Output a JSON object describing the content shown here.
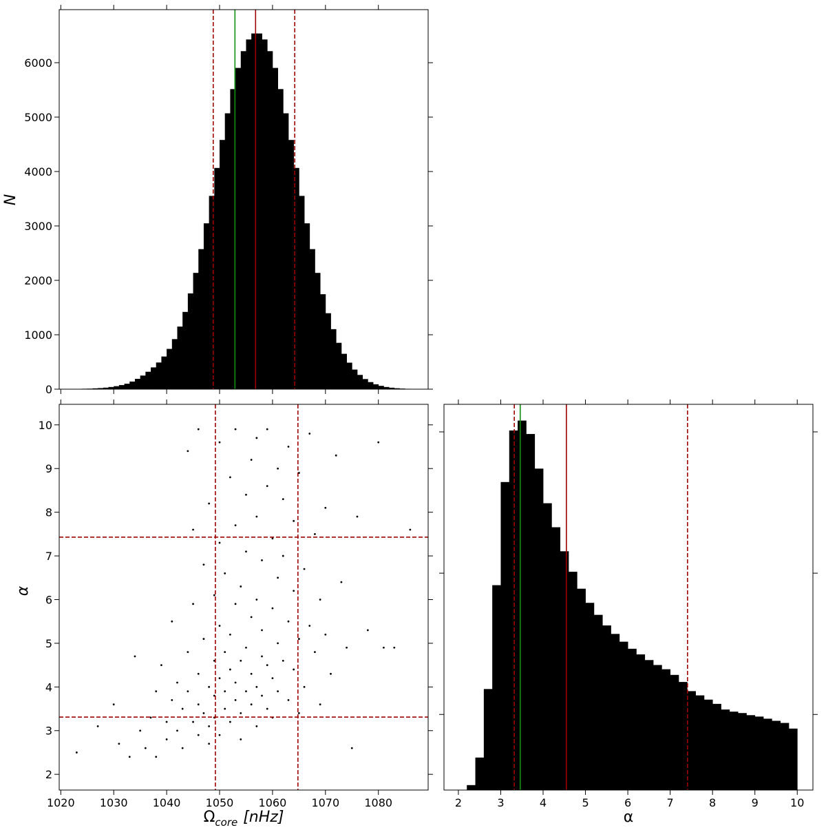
{
  "chart_data": [
    {
      "type": "histogram",
      "color": "#000000",
      "bins": [
        1023,
        1024,
        1025,
        1026,
        1027,
        1028,
        1029,
        1030,
        1031,
        1032,
        1033,
        1034,
        1035,
        1036,
        1037,
        1038,
        1039,
        1040,
        1041,
        1042,
        1043,
        1044,
        1045,
        1046,
        1047,
        1048,
        1049,
        1050,
        1051,
        1052,
        1053,
        1054,
        1055,
        1056,
        1057,
        1058,
        1059,
        1060,
        1061,
        1062,
        1063,
        1064,
        1065,
        1066,
        1067,
        1068,
        1069,
        1070,
        1071,
        1072,
        1073,
        1074,
        1075,
        1076,
        1077,
        1078,
        1079,
        1080,
        1081,
        1082,
        1083,
        1084,
        1085,
        1086
      ],
      "counts": [
        5,
        8,
        10,
        15,
        20,
        28,
        40,
        55,
        75,
        100,
        140,
        190,
        250,
        320,
        400,
        490,
        600,
        740,
        920,
        1150,
        1420,
        1760,
        2137,
        2574,
        3048,
        3552,
        4066,
        4580,
        5070,
        5515,
        5904,
        6212,
        6427,
        6537,
        6537,
        6427,
        6212,
        5904,
        5515,
        5070,
        4580,
        4066,
        3552,
        3048,
        2574,
        2137,
        1745,
        1396,
        1103,
        852,
        650,
        487,
        360,
        262,
        186,
        130,
        90,
        61,
        40,
        27,
        17,
        11,
        7
      ],
      "xlim": [
        1019.7,
        1089.4
      ],
      "xticks": [
        1020,
        1030,
        1040,
        1050,
        1060,
        1070,
        1080
      ],
      "show_xtick_labels": false,
      "ylim": [
        0,
        6975
      ],
      "yticks": [
        0,
        1000,
        2000,
        3000,
        4000,
        5000,
        6000
      ],
      "show_ytick_labels": true,
      "y_label": "N",
      "vlines": [
        {
          "x": 1048.8,
          "color": "#a00000",
          "style": "dashed"
        },
        {
          "x": 1064.2,
          "color": "#a00000",
          "style": "dashed"
        },
        {
          "x": 1056.8,
          "color": "#a00000",
          "style": "solid"
        },
        {
          "x": 1052.9,
          "color": "#109010",
          "style": "solid"
        }
      ]
    },
    {
      "type": "scatter",
      "color": "#000000",
      "x": [
        1023,
        1027,
        1030,
        1031,
        1033,
        1034,
        1035,
        1036,
        1037,
        1038,
        1038,
        1039,
        1040,
        1040,
        1041,
        1041,
        1042,
        1042,
        1043,
        1043,
        1044,
        1044,
        1044,
        1045,
        1045,
        1045,
        1046,
        1046,
        1046,
        1046,
        1047,
        1047,
        1047,
        1048,
        1048,
        1048,
        1048,
        1049,
        1049,
        1049,
        1049,
        1050,
        1050,
        1050,
        1050,
        1050,
        1051,
        1051,
        1051,
        1051,
        1052,
        1052,
        1052,
        1052,
        1053,
        1053,
        1053,
        1053,
        1053,
        1054,
        1054,
        1054,
        1054,
        1055,
        1055,
        1055,
        1055,
        1056,
        1056,
        1056,
        1056,
        1057,
        1057,
        1057,
        1057,
        1057,
        1058,
        1058,
        1058,
        1058,
        1059,
        1059,
        1059,
        1059,
        1060,
        1060,
        1060,
        1060,
        1061,
        1061,
        1061,
        1061,
        1062,
        1062,
        1062,
        1063,
        1063,
        1063,
        1064,
        1064,
        1064,
        1065,
        1065,
        1065,
        1066,
        1066,
        1067,
        1067,
        1068,
        1068,
        1069,
        1069,
        1070,
        1070,
        1071,
        1072,
        1073,
        1074,
        1075,
        1076,
        1078,
        1080,
        1081,
        1083,
        1086
      ],
      "y": [
        2.5,
        3.1,
        3.6,
        2.7,
        2.4,
        4.7,
        3.0,
        2.6,
        3.3,
        3.9,
        2.4,
        4.5,
        3.2,
        2.8,
        3.7,
        5.5,
        3.0,
        4.1,
        3.5,
        2.6,
        3.9,
        4.8,
        9.4,
        3.2,
        5.9,
        7.6,
        3.6,
        4.3,
        2.9,
        9.9,
        3.4,
        5.1,
        6.8,
        3.1,
        4.0,
        8.2,
        2.7,
        3.8,
        4.6,
        6.1,
        3.3,
        2.9,
        4.2,
        5.4,
        7.3,
        9.6,
        3.5,
        3.9,
        4.8,
        6.6,
        3.2,
        4.4,
        5.2,
        8.8,
        3.7,
        4.1,
        5.9,
        7.7,
        9.9,
        3.4,
        4.6,
        6.3,
        2.8,
        3.9,
        4.9,
        7.1,
        8.4,
        3.6,
        4.3,
        5.6,
        9.2,
        3.1,
        4.0,
        6.0,
        7.9,
        9.7,
        3.8,
        4.7,
        5.3,
        6.9,
        3.5,
        4.5,
        8.6,
        9.9,
        4.2,
        5.8,
        7.4,
        3.3,
        3.9,
        5.0,
        6.5,
        9.0,
        4.6,
        7.0,
        8.3,
        3.7,
        5.5,
        9.5,
        4.4,
        6.2,
        7.8,
        3.4,
        5.1,
        8.9,
        4.0,
        6.7,
        5.4,
        9.8,
        4.8,
        7.5,
        3.6,
        6.0,
        5.2,
        8.1,
        4.3,
        9.3,
        6.4,
        4.9,
        2.6,
        7.9,
        5.3,
        9.6,
        4.9,
        4.9,
        7.6
      ],
      "xlim": [
        1019.7,
        1089.4
      ],
      "xticks": [
        1020,
        1030,
        1040,
        1050,
        1060,
        1070,
        1080
      ],
      "show_xtick_labels": true,
      "ylim": [
        1.64,
        10.47
      ],
      "yticks": [
        2,
        3,
        4,
        5,
        6,
        7,
        8,
        9,
        10
      ],
      "show_ytick_labels": true,
      "x_label": {
        "main": "Ω",
        "sub": "core",
        "unit": "[nHz]"
      },
      "y_label": "α",
      "vlines": [
        {
          "x": 1049.2,
          "color": "#a00000",
          "style": "dashed"
        },
        {
          "x": 1064.8,
          "color": "#a00000",
          "style": "dashed"
        }
      ],
      "hlines": [
        {
          "y": 7.43,
          "color": "#a00000",
          "style": "dashed"
        },
        {
          "y": 3.31,
          "color": "#a00000",
          "style": "dashed"
        }
      ]
    },
    {
      "type": "histogram",
      "color": "#000000",
      "bins": [
        2.2,
        2.4,
        2.6,
        2.8,
        3.0,
        3.2,
        3.4,
        3.6,
        3.8,
        4.0,
        4.2,
        4.4,
        4.6,
        4.8,
        5.0,
        5.2,
        5.4,
        5.6,
        5.8,
        6.0,
        6.2,
        6.4,
        6.6,
        6.8,
        7.0,
        7.2,
        7.4,
        7.6,
        7.8,
        8.0,
        8.2,
        8.4,
        8.6,
        8.8,
        9.0,
        9.2,
        9.4,
        9.6,
        9.8,
        10.0
      ],
      "counts": [
        70,
        460,
        1430,
        2900,
        4360,
        5090,
        5230,
        5040,
        4550,
        4060,
        3720,
        3380,
        3090,
        2850,
        2650,
        2480,
        2330,
        2210,
        2100,
        2000,
        1920,
        1840,
        1770,
        1710,
        1630,
        1530,
        1400,
        1340,
        1280,
        1220,
        1140,
        1110,
        1090,
        1060,
        1040,
        1010,
        980,
        950,
        870
      ],
      "xlim": [
        1.66,
        10.37
      ],
      "xticks": [
        2,
        3,
        4,
        5,
        6,
        7,
        8,
        9,
        10
      ],
      "show_xtick_labels": true,
      "ylim": [
        0,
        5460
      ],
      "yticks": [
        1070,
        3070,
        5070
      ],
      "show_ytick_labels": false,
      "x_label": {
        "main": "α"
      },
      "vlines": [
        {
          "x": 3.32,
          "color": "#a00000",
          "style": "dashed"
        },
        {
          "x": 7.41,
          "color": "#a00000",
          "style": "dashed"
        },
        {
          "x": 4.55,
          "color": "#a00000",
          "style": "solid"
        },
        {
          "x": 3.46,
          "color": "#109010",
          "style": "solid"
        }
      ]
    }
  ]
}
